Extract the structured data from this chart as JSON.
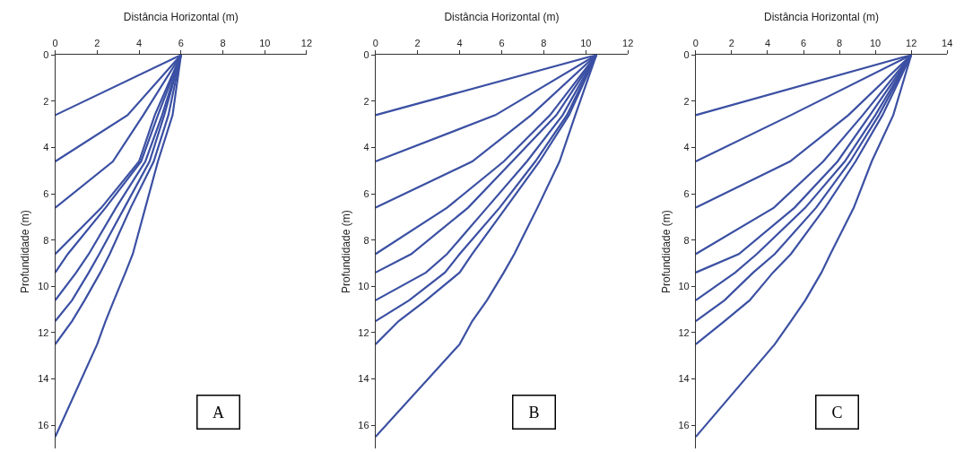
{
  "chart_data": [
    {
      "type": "line",
      "xlabel": "Distância Horizontal (m)",
      "ylabel": "Profundidade (m)",
      "xlim": [
        0,
        12
      ],
      "xticks": [
        0,
        2,
        4,
        6,
        8,
        10,
        12
      ],
      "ylim": [
        17,
        0
      ],
      "yticks": [
        0,
        2,
        4,
        6,
        8,
        10,
        12,
        14,
        16
      ],
      "grid": false,
      "marker": "none",
      "line_style": "solid",
      "annotations": [
        "A"
      ],
      "series": [
        {
          "color": "#3b50a3",
          "x": [
            6,
            0
          ],
          "values": [
            0,
            2.6
          ]
        },
        {
          "color": "#3b50a3",
          "x": [
            6,
            3.45,
            0
          ],
          "values": [
            0,
            2.6,
            4.6
          ]
        },
        {
          "color": "#3b50a3",
          "x": [
            6,
            4.2,
            2.75,
            0
          ],
          "values": [
            0,
            2.6,
            4.6,
            6.6
          ]
        },
        {
          "color": "#3b50a3",
          "x": [
            6,
            4.75,
            4.0,
            2.2,
            0
          ],
          "values": [
            0,
            2.6,
            4.6,
            6.6,
            8.6
          ]
        },
        {
          "color": "#3b50a3",
          "x": [
            6,
            4.9,
            4.1,
            2.4,
            0.6,
            0
          ],
          "values": [
            0,
            2.6,
            4.6,
            6.6,
            8.6,
            9.4
          ]
        },
        {
          "color": "#3b50a3",
          "x": [
            6,
            5.1,
            4.3,
            2.9,
            1.6,
            1.0,
            0
          ],
          "values": [
            0,
            2.6,
            4.6,
            6.6,
            8.6,
            9.4,
            10.6
          ]
        },
        {
          "color": "#3b50a3",
          "x": [
            6,
            5.2,
            4.5,
            3.3,
            2.1,
            1.6,
            0.8,
            0
          ],
          "values": [
            0,
            2.6,
            4.6,
            6.6,
            8.6,
            9.4,
            10.6,
            11.5
          ]
        },
        {
          "color": "#3b50a3",
          "x": [
            6,
            5.4,
            4.7,
            3.6,
            2.6,
            2.15,
            1.4,
            0.8,
            0
          ],
          "values": [
            0,
            2.6,
            4.6,
            6.6,
            8.6,
            9.4,
            10.6,
            11.5,
            12.5
          ]
        },
        {
          "color": "#3b50a3",
          "x": [
            6,
            5.6,
            4.9,
            4.3,
            3.7,
            3.35,
            2.8,
            2.4,
            2.0,
            0
          ],
          "values": [
            0,
            2.6,
            4.6,
            6.6,
            8.6,
            9.4,
            10.6,
            11.5,
            12.5,
            16.5
          ]
        }
      ]
    },
    {
      "type": "line",
      "xlabel": "Distância Horizontal (m)",
      "ylabel": "Profundidade (m)",
      "xlim": [
        0,
        12
      ],
      "xticks": [
        0,
        2,
        4,
        6,
        8,
        10,
        12
      ],
      "ylim": [
        17,
        0
      ],
      "yticks": [
        0,
        2,
        4,
        6,
        8,
        10,
        12,
        14,
        16
      ],
      "grid": false,
      "marker": "none",
      "line_style": "solid",
      "annotations": [
        "B"
      ],
      "series": [
        {
          "color": "#3b50a3",
          "x": [
            10.5,
            0
          ],
          "values": [
            0,
            2.6
          ]
        },
        {
          "color": "#3b50a3",
          "x": [
            10.5,
            5.7,
            0
          ],
          "values": [
            0,
            2.6,
            4.6
          ]
        },
        {
          "color": "#3b50a3",
          "x": [
            10.5,
            7.4,
            4.6,
            0
          ],
          "values": [
            0,
            2.6,
            4.6,
            6.6
          ]
        },
        {
          "color": "#3b50a3",
          "x": [
            10.5,
            8.3,
            6.1,
            3.4,
            0
          ],
          "values": [
            0,
            2.6,
            4.6,
            6.6,
            8.6
          ]
        },
        {
          "color": "#3b50a3",
          "x": [
            10.5,
            8.6,
            6.5,
            4.4,
            1.7,
            0
          ],
          "values": [
            0,
            2.6,
            4.6,
            6.6,
            8.6,
            9.4
          ]
        },
        {
          "color": "#3b50a3",
          "x": [
            10.5,
            8.9,
            7.2,
            5.3,
            3.4,
            2.4,
            0
          ],
          "values": [
            0,
            2.6,
            4.6,
            6.6,
            8.6,
            9.4,
            10.6
          ]
        },
        {
          "color": "#3b50a3",
          "x": [
            10.5,
            9.1,
            7.6,
            5.9,
            4.0,
            3.3,
            1.6,
            0
          ],
          "values": [
            0,
            2.6,
            4.6,
            6.6,
            8.6,
            9.4,
            10.6,
            11.5
          ]
        },
        {
          "color": "#3b50a3",
          "x": [
            10.5,
            9.2,
            7.8,
            6.2,
            4.6,
            4.0,
            2.4,
            1.1,
            0
          ],
          "values": [
            0,
            2.6,
            4.6,
            6.6,
            8.6,
            9.4,
            10.6,
            11.5,
            12.5
          ]
        },
        {
          "color": "#3b50a3",
          "x": [
            10.5,
            9.5,
            8.75,
            7.7,
            6.6,
            6.1,
            5.3,
            4.6,
            4.0,
            0
          ],
          "values": [
            0,
            2.6,
            4.6,
            6.6,
            8.6,
            9.4,
            10.6,
            11.5,
            12.5,
            16.5
          ]
        }
      ]
    },
    {
      "type": "line",
      "xlabel": "Distância Horizontal (m)",
      "ylabel": "Profundidade (m)",
      "xlim": [
        0,
        14
      ],
      "xticks": [
        0,
        2,
        4,
        6,
        8,
        10,
        12,
        14
      ],
      "ylim": [
        17,
        0
      ],
      "yticks": [
        0,
        2,
        4,
        6,
        8,
        10,
        12,
        14,
        16
      ],
      "grid": false,
      "marker": "none",
      "line_style": "solid",
      "annotations": [
        "C"
      ],
      "series": [
        {
          "color": "#3b50a3",
          "x": [
            12,
            0
          ],
          "values": [
            0,
            2.6
          ]
        },
        {
          "color": "#3b50a3",
          "x": [
            12,
            5.3,
            0
          ],
          "values": [
            0,
            2.6,
            4.6
          ]
        },
        {
          "color": "#3b50a3",
          "x": [
            12,
            8.5,
            5.25,
            0
          ],
          "values": [
            0,
            2.6,
            4.6,
            6.6
          ]
        },
        {
          "color": "#3b50a3",
          "x": [
            12,
            9.3,
            7.1,
            4.35,
            0
          ],
          "values": [
            0,
            2.6,
            4.6,
            6.6,
            8.6
          ]
        },
        {
          "color": "#3b50a3",
          "x": [
            12,
            9.7,
            7.9,
            5.5,
            2.4,
            0
          ],
          "values": [
            0,
            2.6,
            4.6,
            6.6,
            8.6,
            9.4
          ]
        },
        {
          "color": "#3b50a3",
          "x": [
            12,
            10.0,
            8.3,
            6.1,
            3.4,
            2.2,
            0
          ],
          "values": [
            0,
            2.6,
            4.6,
            6.6,
            8.6,
            9.4,
            10.6
          ]
        },
        {
          "color": "#3b50a3",
          "x": [
            12,
            10.2,
            8.6,
            6.7,
            4.4,
            3.2,
            1.6,
            0
          ],
          "values": [
            0,
            2.6,
            4.6,
            6.6,
            8.6,
            9.4,
            10.6,
            11.5
          ]
        },
        {
          "color": "#3b50a3",
          "x": [
            12,
            10.4,
            8.9,
            7.2,
            5.3,
            4.3,
            3.0,
            1.6,
            0
          ],
          "values": [
            0,
            2.6,
            4.6,
            6.6,
            8.6,
            9.4,
            10.6,
            11.5,
            12.5
          ]
        },
        {
          "color": "#3b50a3",
          "x": [
            12,
            11.0,
            9.8,
            8.8,
            7.5,
            7.0,
            6.1,
            5.3,
            4.4,
            0
          ],
          "values": [
            0,
            2.6,
            4.6,
            6.6,
            8.6,
            9.4,
            10.6,
            11.5,
            12.5,
            16.5
          ]
        }
      ]
    }
  ]
}
